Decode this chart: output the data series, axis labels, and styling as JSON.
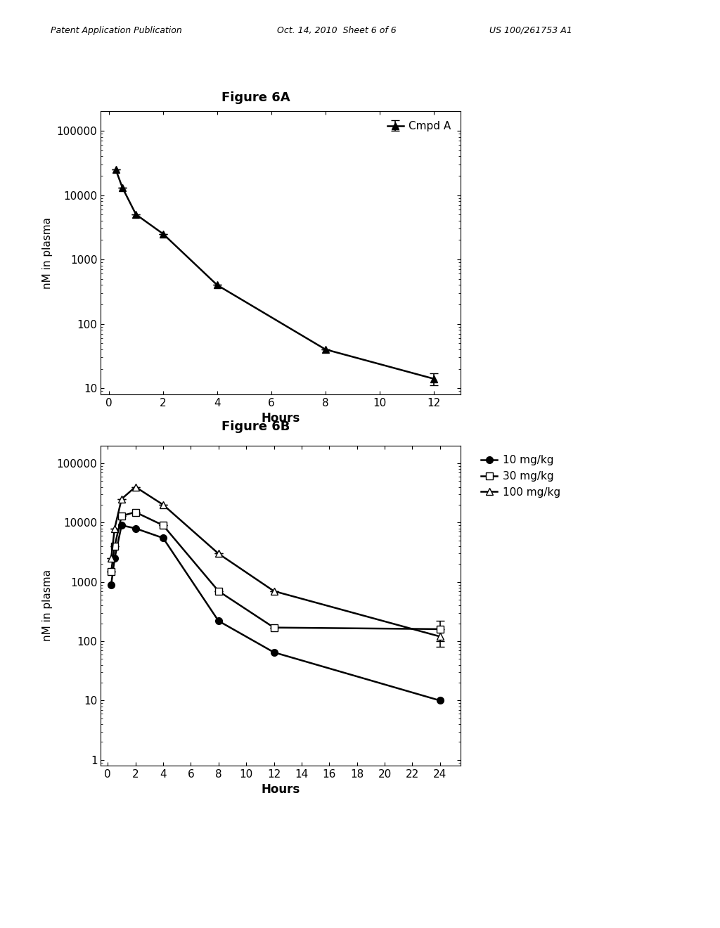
{
  "fig_title_a": "Figure 6A",
  "fig_title_b": "Figure 6B",
  "header_left": "Patent Application Publication",
  "header_mid": "Oct. 14, 2010  Sheet 6 of 6",
  "header_right": "US 100/261753 A1",
  "fig6a": {
    "x": [
      0.25,
      0.5,
      1.0,
      2.0,
      4.0,
      8.0,
      12.0
    ],
    "y": [
      25000,
      13000,
      5000,
      2500,
      400,
      40,
      14
    ],
    "yerr_lo": [
      0,
      0,
      0,
      0,
      0,
      0,
      3
    ],
    "yerr_hi": [
      0,
      0,
      0,
      0,
      0,
      0,
      3
    ],
    "label": "Cmpd A",
    "ylim": [
      8,
      200000
    ],
    "xlim": [
      -0.3,
      13
    ],
    "xlabel": "Hours",
    "ylabel": "nM in plasma",
    "xticks": [
      0,
      2,
      4,
      6,
      8,
      10,
      12
    ],
    "yticks": [
      10,
      100,
      1000,
      10000,
      100000
    ],
    "ytick_labels": [
      "10",
      "100",
      "1000",
      "10000",
      "100000"
    ]
  },
  "fig6b": {
    "series": [
      {
        "label": "10 mg/kg",
        "x": [
          0.25,
          0.5,
          1.0,
          2.0,
          4.0,
          8.0,
          12.0,
          24.0
        ],
        "y": [
          900,
          2500,
          9000,
          8000,
          5500,
          220,
          65,
          10
        ],
        "yerr_lo": [
          0,
          0,
          0,
          0,
          0,
          0,
          0,
          0
        ],
        "yerr_hi": [
          0,
          0,
          0,
          0,
          0,
          0,
          0,
          0
        ],
        "marker": "o",
        "fillstyle": "full"
      },
      {
        "label": "30 mg/kg",
        "x": [
          0.25,
          0.5,
          1.0,
          2.0,
          4.0,
          8.0,
          12.0,
          24.0
        ],
        "y": [
          1500,
          4000,
          13000,
          15000,
          9000,
          700,
          170,
          160
        ],
        "yerr_lo": [
          0,
          0,
          0,
          0,
          0,
          0,
          0,
          60
        ],
        "yerr_hi": [
          0,
          0,
          0,
          0,
          0,
          0,
          0,
          60
        ],
        "marker": "s",
        "fillstyle": "none"
      },
      {
        "label": "100 mg/kg",
        "x": [
          0.25,
          0.5,
          1.0,
          2.0,
          4.0,
          8.0,
          12.0,
          24.0
        ],
        "y": [
          2500,
          8000,
          25000,
          40000,
          20000,
          3000,
          700,
          120
        ],
        "yerr_lo": [
          0,
          0,
          0,
          0,
          0,
          0,
          0,
          40
        ],
        "yerr_hi": [
          0,
          0,
          0,
          0,
          0,
          0,
          0,
          40
        ],
        "marker": "^",
        "fillstyle": "none"
      }
    ],
    "ylim": [
      0.8,
      200000
    ],
    "xlim": [
      -0.5,
      25.5
    ],
    "xlabel": "Hours",
    "ylabel": "nM in plasma",
    "xticks": [
      0,
      2,
      4,
      6,
      8,
      10,
      12,
      14,
      16,
      18,
      20,
      22,
      24
    ],
    "yticks": [
      1,
      10,
      100,
      1000,
      10000,
      100000
    ],
    "ytick_labels": [
      "1",
      "10",
      "100",
      "1000",
      "10000",
      "100000"
    ]
  },
  "bg_color": "#ffffff",
  "font_color": "#000000",
  "font_size": 11,
  "title_font_size": 13,
  "markersize": 7,
  "linewidth": 1.8,
  "capsize": 4
}
